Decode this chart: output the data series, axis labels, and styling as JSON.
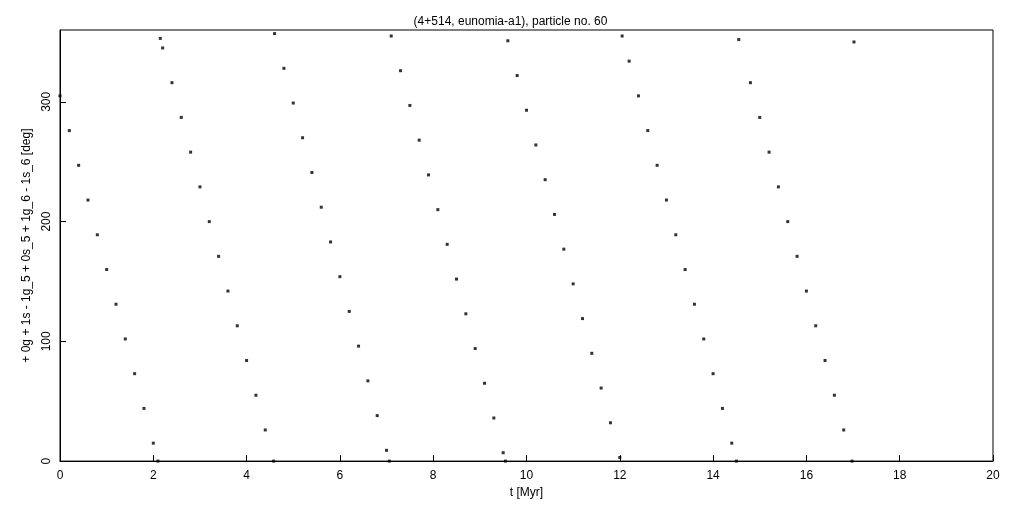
{
  "chart_data": {
    "type": "scatter",
    "title": "(4+514, eunomia-a1), particle no. 60",
    "xlabel": "t [Myr]",
    "ylabel": "+ 0g + 1s - 1g_5 + 0s_5 + 1g_6 - 1s_6 [deg]",
    "xlim": [
      0,
      20
    ],
    "xticks": [
      0,
      2,
      4,
      6,
      8,
      10,
      12,
      14,
      16,
      18,
      20
    ],
    "ylim": [
      0,
      360
    ],
    "yticks": [
      0,
      100,
      200,
      300
    ],
    "marker": "square",
    "series": [
      {
        "color": "#000000",
        "x": [
          0,
          0.2,
          0.4,
          0.6,
          0.8,
          1.0,
          1.2,
          1.4,
          1.6,
          1.8,
          2.0,
          2.1,
          2.15,
          2.2,
          2.4,
          2.6,
          2.8,
          3.0,
          3.2,
          3.4,
          3.6,
          3.8,
          4.0,
          4.2,
          4.4,
          4.58,
          4.6,
          4.8,
          5.0,
          5.2,
          5.4,
          5.6,
          5.8,
          6.0,
          6.2,
          6.4,
          6.6,
          6.8,
          7.0,
          7.06,
          7.1,
          7.3,
          7.5,
          7.7,
          7.9,
          8.1,
          8.3,
          8.5,
          8.7,
          8.9,
          9.1,
          9.3,
          9.5,
          9.55,
          9.6,
          9.8,
          10.0,
          10.2,
          10.4,
          10.6,
          10.8,
          11.0,
          11.2,
          11.4,
          11.6,
          11.8,
          12.0,
          12.05,
          12.2,
          12.4,
          12.6,
          12.8,
          13.0,
          13.2,
          13.4,
          13.6,
          13.8,
          14.0,
          14.2,
          14.4,
          14.5,
          14.55,
          14.8,
          15.0,
          15.2,
          15.4,
          15.6,
          15.8,
          16.0,
          16.2,
          16.4,
          16.6,
          16.8,
          16.98,
          17.02
        ],
        "values": [
          305,
          276,
          247,
          218,
          189,
          160,
          131,
          102,
          73,
          44,
          15,
          0,
          353,
          345,
          316,
          287,
          258,
          229,
          200,
          171,
          142,
          113,
          84,
          55,
          26,
          0,
          357,
          328,
          299,
          270,
          241,
          212,
          183,
          154,
          125,
          96,
          67,
          38,
          9,
          0,
          355,
          326,
          297,
          268,
          239,
          210,
          181,
          152,
          123,
          94,
          65,
          36,
          7,
          0,
          351,
          322,
          293,
          264,
          235,
          206,
          177,
          148,
          119,
          90,
          61,
          32,
          3,
          355,
          334,
          305,
          276,
          247,
          218,
          189,
          160,
          131,
          102,
          73,
          44,
          15,
          0,
          352,
          316,
          287,
          258,
          229,
          200,
          171,
          142,
          113,
          84,
          55,
          26,
          0,
          350
        ]
      }
    ]
  }
}
